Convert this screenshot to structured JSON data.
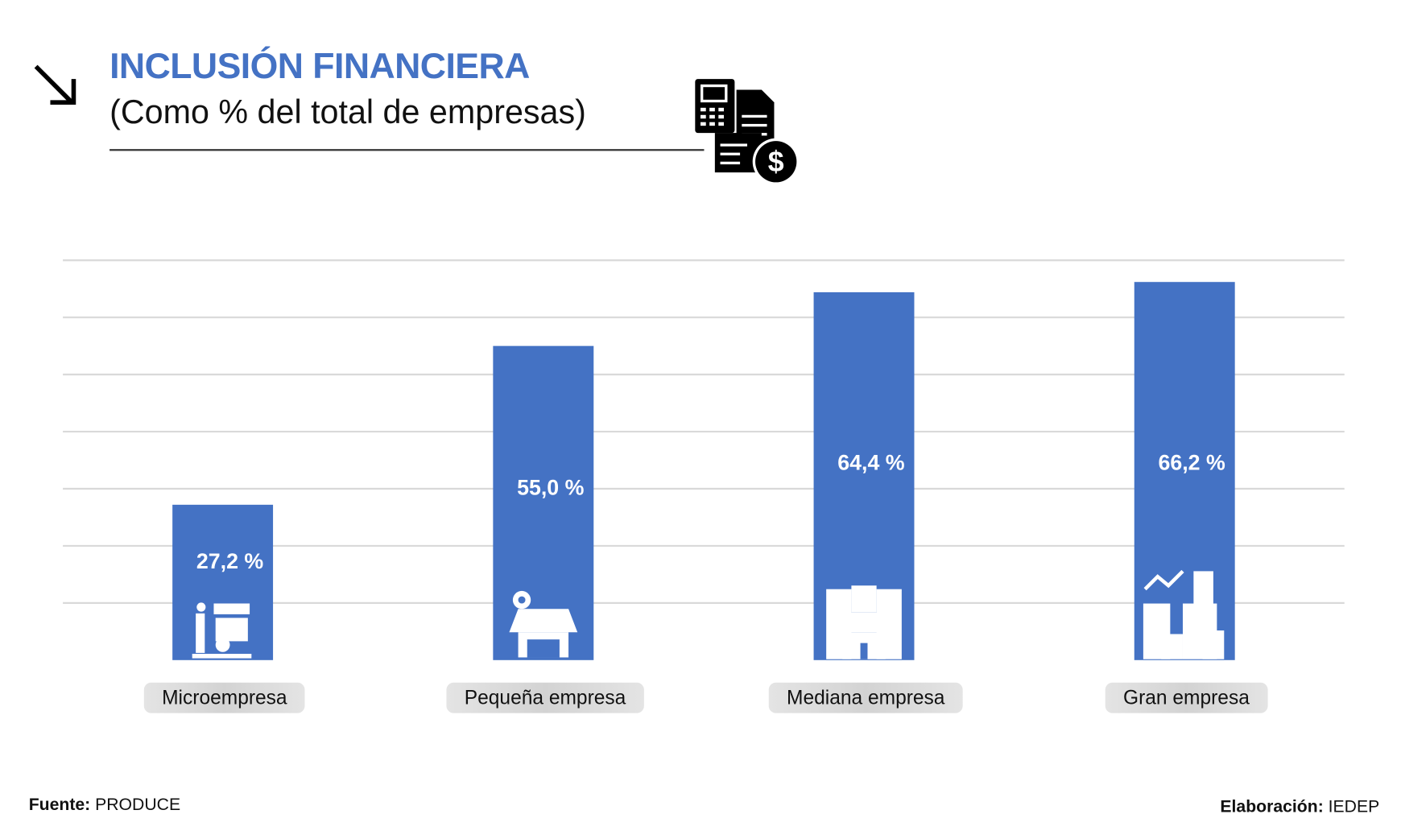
{
  "header": {
    "title": "INCLUSIÓN FINANCIERA",
    "subtitle": "(Como % del total de empresas)"
  },
  "footer": {
    "source_label": "Fuente:",
    "source": "PRODUCE",
    "credit_label": "Elaboración:",
    "credit": "IEDEP"
  },
  "colors": {
    "bar": "#4472c4",
    "title": "#4472c4",
    "grid": "#d9d9d9"
  },
  "chart_data": {
    "type": "bar",
    "title": "INCLUSIÓN FINANCIERA",
    "subtitle": "(Como % del total de empresas)",
    "categories": [
      "Microempresa",
      "Pequeña empresa",
      "Mediana empresa",
      "Gran empresa"
    ],
    "values": [
      27.2,
      55.0,
      64.4,
      66.2
    ],
    "value_labels": [
      "27,2 %",
      "55,0  %",
      "64,4  %",
      "66,2  %"
    ],
    "icons": [
      "street-vendor-icon",
      "shop-icon",
      "building-store-icon",
      "city-growth-icon"
    ],
    "xlabel": "",
    "ylabel": "",
    "ylim": [
      0,
      70
    ],
    "grid": true,
    "legend": "none"
  }
}
